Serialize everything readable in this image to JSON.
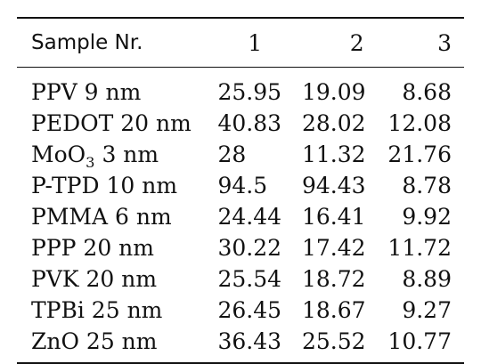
{
  "table": {
    "headers": [
      "Sample Nr.",
      "1",
      "2",
      "3"
    ],
    "rows": [
      {
        "sample": "PPV 9 nm",
        "sample_sub": "",
        "sample_rest": "",
        "v1": "25.95",
        "v2": "19.09",
        "v3": "8.68"
      },
      {
        "sample": "PEDOT 20 nm",
        "sample_sub": "",
        "sample_rest": "",
        "v1": "40.83",
        "v2": "28.02",
        "v3": "12.08"
      },
      {
        "sample": "MoO",
        "sample_sub": "3",
        "sample_rest": " 3 nm",
        "v1": "28",
        "v2": "11.32",
        "v3": "21.76"
      },
      {
        "sample": "P-TPD 10 nm",
        "sample_sub": "",
        "sample_rest": "",
        "v1": "94.5",
        "v2": "94.43",
        "v3": "8.78"
      },
      {
        "sample": "PMMA 6 nm",
        "sample_sub": "",
        "sample_rest": "",
        "v1": "24.44",
        "v2": "16.41",
        "v3": "9.92"
      },
      {
        "sample": "PPP 20 nm",
        "sample_sub": "",
        "sample_rest": "",
        "v1": "30.22",
        "v2": "17.42",
        "v3": "11.72"
      },
      {
        "sample": "PVK 20 nm",
        "sample_sub": "",
        "sample_rest": "",
        "v1": "25.54",
        "v2": "18.72",
        "v3": "8.89"
      },
      {
        "sample": "TPBi 25 nm",
        "sample_sub": "",
        "sample_rest": "",
        "v1": "26.45",
        "v2": "18.67",
        "v3": "9.27"
      },
      {
        "sample": "ZnO 25 nm",
        "sample_sub": "",
        "sample_rest": "",
        "v1": "36.43",
        "v2": "25.52",
        "v3": "10.77"
      }
    ]
  }
}
